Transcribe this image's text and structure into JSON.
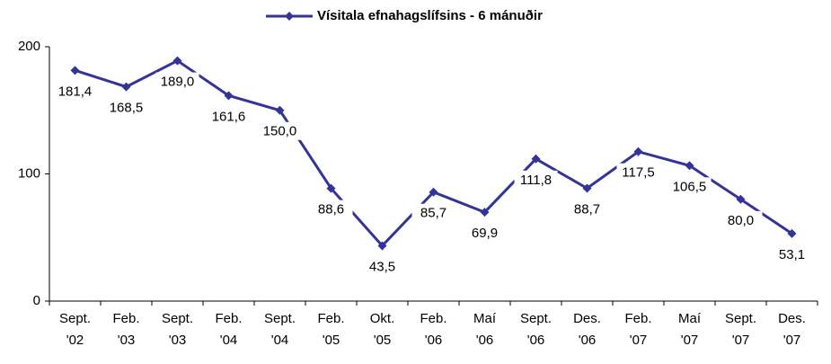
{
  "chart_data": {
    "type": "line",
    "categories": [
      [
        "Sept.",
        "'02"
      ],
      [
        "Feb.",
        "'03"
      ],
      [
        "Sept.",
        "'03"
      ],
      [
        "Feb.",
        "'04"
      ],
      [
        "Sept.",
        "'04"
      ],
      [
        "Feb.",
        "'05"
      ],
      [
        "Okt.",
        "'05"
      ],
      [
        "Feb.",
        "'06"
      ],
      [
        "Maí",
        "'06"
      ],
      [
        "Sept.",
        "'06"
      ],
      [
        "Des.",
        "'06"
      ],
      [
        "Feb.",
        "'07"
      ],
      [
        "Maí",
        "'07"
      ],
      [
        "Sept.",
        "'07"
      ],
      [
        "Des.",
        "'07"
      ]
    ],
    "series": [
      {
        "name": "Vísitala efnahagslífsins - 6 mánuðir",
        "color": "#33339a",
        "values": [
          181.4,
          168.5,
          189.0,
          161.6,
          150.0,
          88.6,
          43.5,
          85.7,
          69.9,
          111.8,
          88.7,
          117.5,
          106.5,
          80.0,
          53.1
        ],
        "value_labels": [
          "181,4",
          "168,5",
          "189,0",
          "161,6",
          "150,0",
          "88,6",
          "43,5",
          "85,7",
          "69,9",
          "111,8",
          "88,7",
          "117,5",
          "106,5",
          "80,0",
          "53,1"
        ]
      }
    ],
    "ylim": [
      0,
      200
    ],
    "yticks": [
      0,
      100,
      200
    ],
    "legend": "top"
  }
}
